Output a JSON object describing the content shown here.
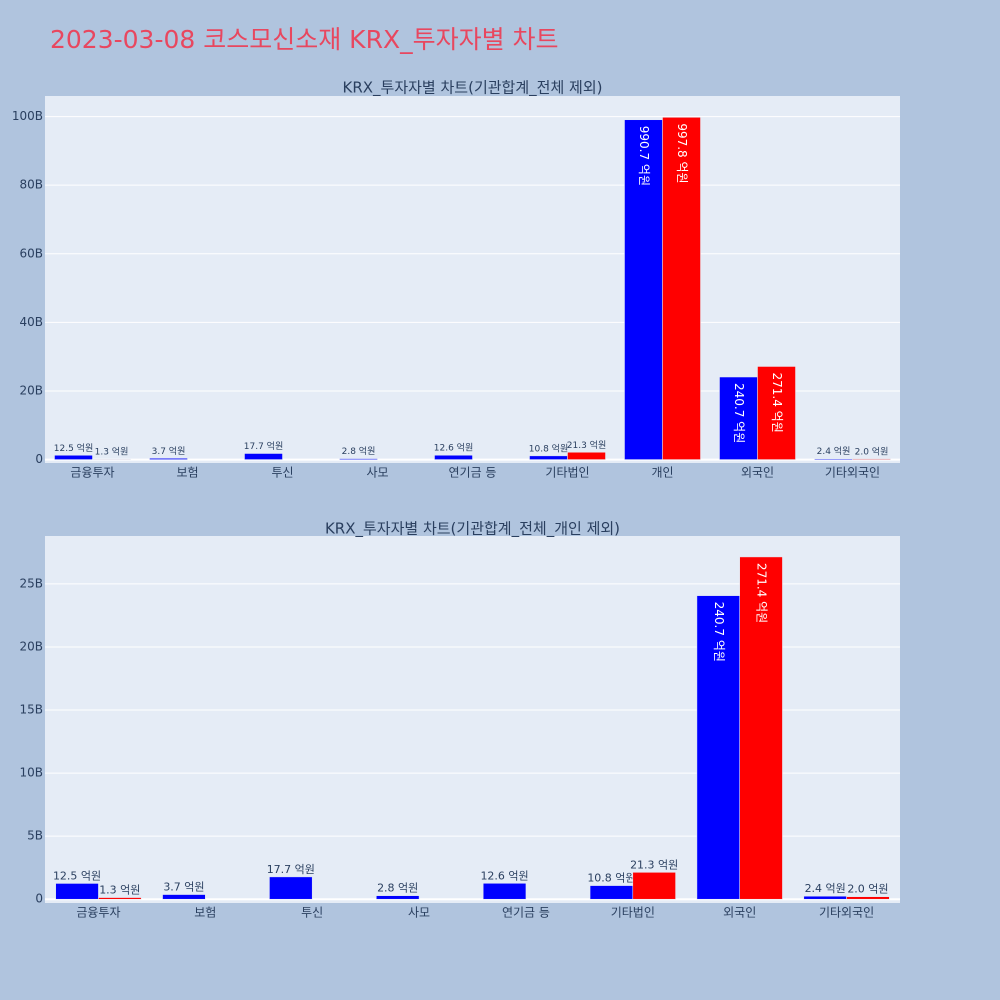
{
  "title": "2023-03-08 코스모신소재 KRX_투자자별 차트",
  "chart_data": [
    {
      "type": "bar",
      "title": "KRX_투자자별 차트(기관합계_전체 제외)",
      "categories": [
        "금융투자",
        "보험",
        "투신",
        "사모",
        "연기금 등",
        "기타법인",
        "개인",
        "외국인",
        "기타외국인"
      ],
      "series": [
        {
          "color": "#0000ff",
          "values": [
            1250000000,
            370000000,
            1770000000,
            280000000,
            1260000000,
            1080000000,
            99070000000,
            24070000000,
            240000000
          ],
          "value_labels": [
            "12.5 억원",
            "3.7 억원",
            "17.7 억원",
            "2.8 억원",
            "12.6 억원",
            "10.8 억원",
            "990.7 억원",
            "240.7 억원",
            "2.4 억원"
          ]
        },
        {
          "color": "#ff0000",
          "values": [
            130000000,
            null,
            null,
            null,
            null,
            2130000000,
            99780000000,
            27140000000,
            200000000
          ],
          "value_labels": [
            "1.3 억원",
            null,
            null,
            null,
            null,
            "21.3 억원",
            "997.8 억원",
            "271.4 억원",
            "2.0 억원"
          ]
        }
      ],
      "ylim": [
        -1000000000,
        106000000000
      ],
      "yticks": [
        0,
        {
          "value": 20000000000,
          "label": "20B"
        },
        {
          "value": 40000000000,
          "label": "40B"
        },
        {
          "value": 60000000000,
          "label": "60B"
        },
        {
          "value": 80000000000,
          "label": "80B"
        },
        {
          "value": 100000000000,
          "label": "100B"
        }
      ],
      "grid": true
    },
    {
      "type": "bar",
      "title": "KRX_투자자별 차트(기관합계_전체_개인 제외)",
      "categories": [
        "금융투자",
        "보험",
        "투신",
        "사모",
        "연기금 등",
        "기타법인",
        "외국인",
        "기타외국인"
      ],
      "series": [
        {
          "color": "#0000ff",
          "values": [
            1250000000,
            370000000,
            1770000000,
            280000000,
            1260000000,
            1080000000,
            24070000000,
            240000000
          ],
          "value_labels": [
            "12.5 억원",
            "3.7 억원",
            "17.7 억원",
            "2.8 억원",
            "12.6 억원",
            "10.8 억원",
            "240.7 억원",
            "2.4 억원"
          ]
        },
        {
          "color": "#ff0000",
          "values": [
            130000000,
            null,
            null,
            null,
            null,
            2130000000,
            27140000000,
            200000000
          ],
          "value_labels": [
            "1.3 억원",
            null,
            null,
            null,
            null,
            "21.3 억원",
            "271.4 억원",
            "2.0 억원"
          ]
        }
      ],
      "ylim": [
        -300000000,
        28800000000
      ],
      "yticks": [
        0,
        {
          "value": 5000000000,
          "label": "5B"
        },
        {
          "value": 10000000000,
          "label": "10B"
        },
        {
          "value": 15000000000,
          "label": "15B"
        },
        {
          "value": 20000000000,
          "label": "20B"
        },
        {
          "value": 25000000000,
          "label": "25B"
        }
      ],
      "grid": true
    }
  ]
}
